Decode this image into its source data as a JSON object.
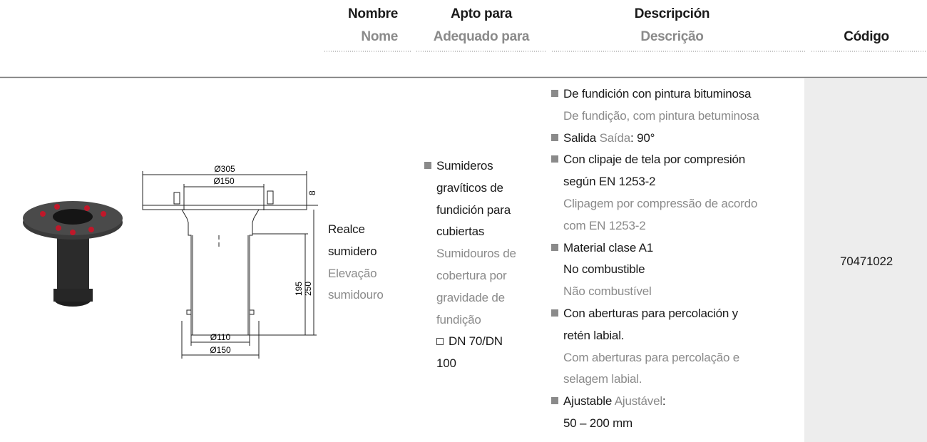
{
  "header": {
    "nombre": {
      "es": "Nombre",
      "pt": "Nome"
    },
    "apto": {
      "es": "Apto para",
      "pt": "Adequado para"
    },
    "descripcion": {
      "es": "Descripción",
      "pt": "Descrição"
    },
    "codigo": "Código"
  },
  "row": {
    "nombre": {
      "es": [
        "Realce",
        "sumidero"
      ],
      "pt": [
        "Elevação",
        "sumidouro"
      ]
    },
    "apto": {
      "es": [
        "Sumideros",
        "gravíticos de",
        "fundición para",
        "cubiertas"
      ],
      "pt": [
        "Sumidouros de",
        "cobertura por",
        "gravidade de",
        "fundição"
      ],
      "option": [
        "DN 70/DN",
        "100"
      ]
    },
    "descripcion": [
      {
        "es": [
          "De fundición con pintura bituminosa"
        ],
        "pt": [
          "De fundição, com pintura betuminosa"
        ]
      },
      {
        "inline": {
          "es": "Salida",
          "pt": "Saída",
          "suffix": ": 90°"
        }
      },
      {
        "es": [
          "Con clipaje de tela por compresión",
          "según EN 1253-2"
        ],
        "pt": [
          "Clipagem por compressão de acordo",
          "com EN 1253-2"
        ]
      },
      {
        "es": [
          "Material clase A1",
          "No combustible"
        ],
        "pt": [
          "Não combustível"
        ]
      },
      {
        "es": [
          "Con aberturas para percolación y",
          "retén labial."
        ],
        "pt": [
          "Com aberturas para percolação e",
          "selagem labial."
        ]
      },
      {
        "inline": {
          "es": "Ajustable",
          "pt": "Ajustável",
          "suffix": ":"
        },
        "es": [
          "50 – 200 mm"
        ]
      }
    ],
    "codigo": "70471022"
  },
  "drawing": {
    "labels": [
      "Ø305",
      "Ø150",
      "8",
      "195",
      "250",
      "Ø110",
      "Ø150"
    ]
  }
}
